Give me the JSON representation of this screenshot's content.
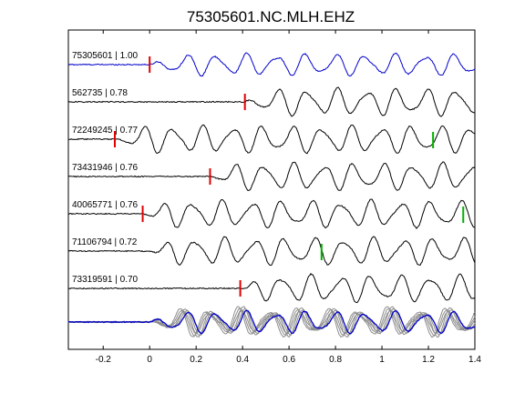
{
  "chart_data": {
    "type": "line",
    "title": "75305601.NC.MLH.EHZ",
    "xlabel": "",
    "ylabel": "",
    "xlim": [
      -0.35,
      1.4
    ],
    "x_ticks": [
      "-0.2",
      "0",
      "0.2",
      "0.4",
      "0.6",
      "0.8",
      "1",
      "1.2",
      "1.4"
    ],
    "x_tick_values": [
      -0.2,
      0,
      0.2,
      0.4,
      0.6,
      0.8,
      1.0,
      1.2,
      1.4
    ],
    "grid": false,
    "colors": {
      "reference": "#0000cc",
      "trace": "#000000",
      "stack_trace": "#8c8c8c",
      "p_pick": "#e00000",
      "s_pick": "#00b000"
    },
    "traces": [
      {
        "label": "75305601 | 1.00",
        "color": "#0000cc",
        "onset": 0.0,
        "p_pick": 0.0,
        "s_pick": null
      },
      {
        "label": "562735 | 0.78",
        "color": "#000000",
        "onset": 0.41,
        "p_pick": 0.41,
        "s_pick": null
      },
      {
        "label": "72249245 | 0.77",
        "color": "#000000",
        "onset": -0.15,
        "p_pick": -0.15,
        "s_pick": 1.22
      },
      {
        "label": "73431946 | 0.76",
        "color": "#000000",
        "onset": 0.26,
        "p_pick": 0.26,
        "s_pick": null
      },
      {
        "label": "40065771 | 0.76",
        "color": "#000000",
        "onset": -0.03,
        "p_pick": -0.03,
        "s_pick": 1.35
      },
      {
        "label": "71106794 | 0.72",
        "color": "#000000",
        "onset": 0.0,
        "p_pick": null,
        "s_pick": 0.74
      },
      {
        "label": "73319591 | 0.70",
        "color": "#000000",
        "onset": 0.39,
        "p_pick": 0.39,
        "s_pick": null
      }
    ]
  }
}
